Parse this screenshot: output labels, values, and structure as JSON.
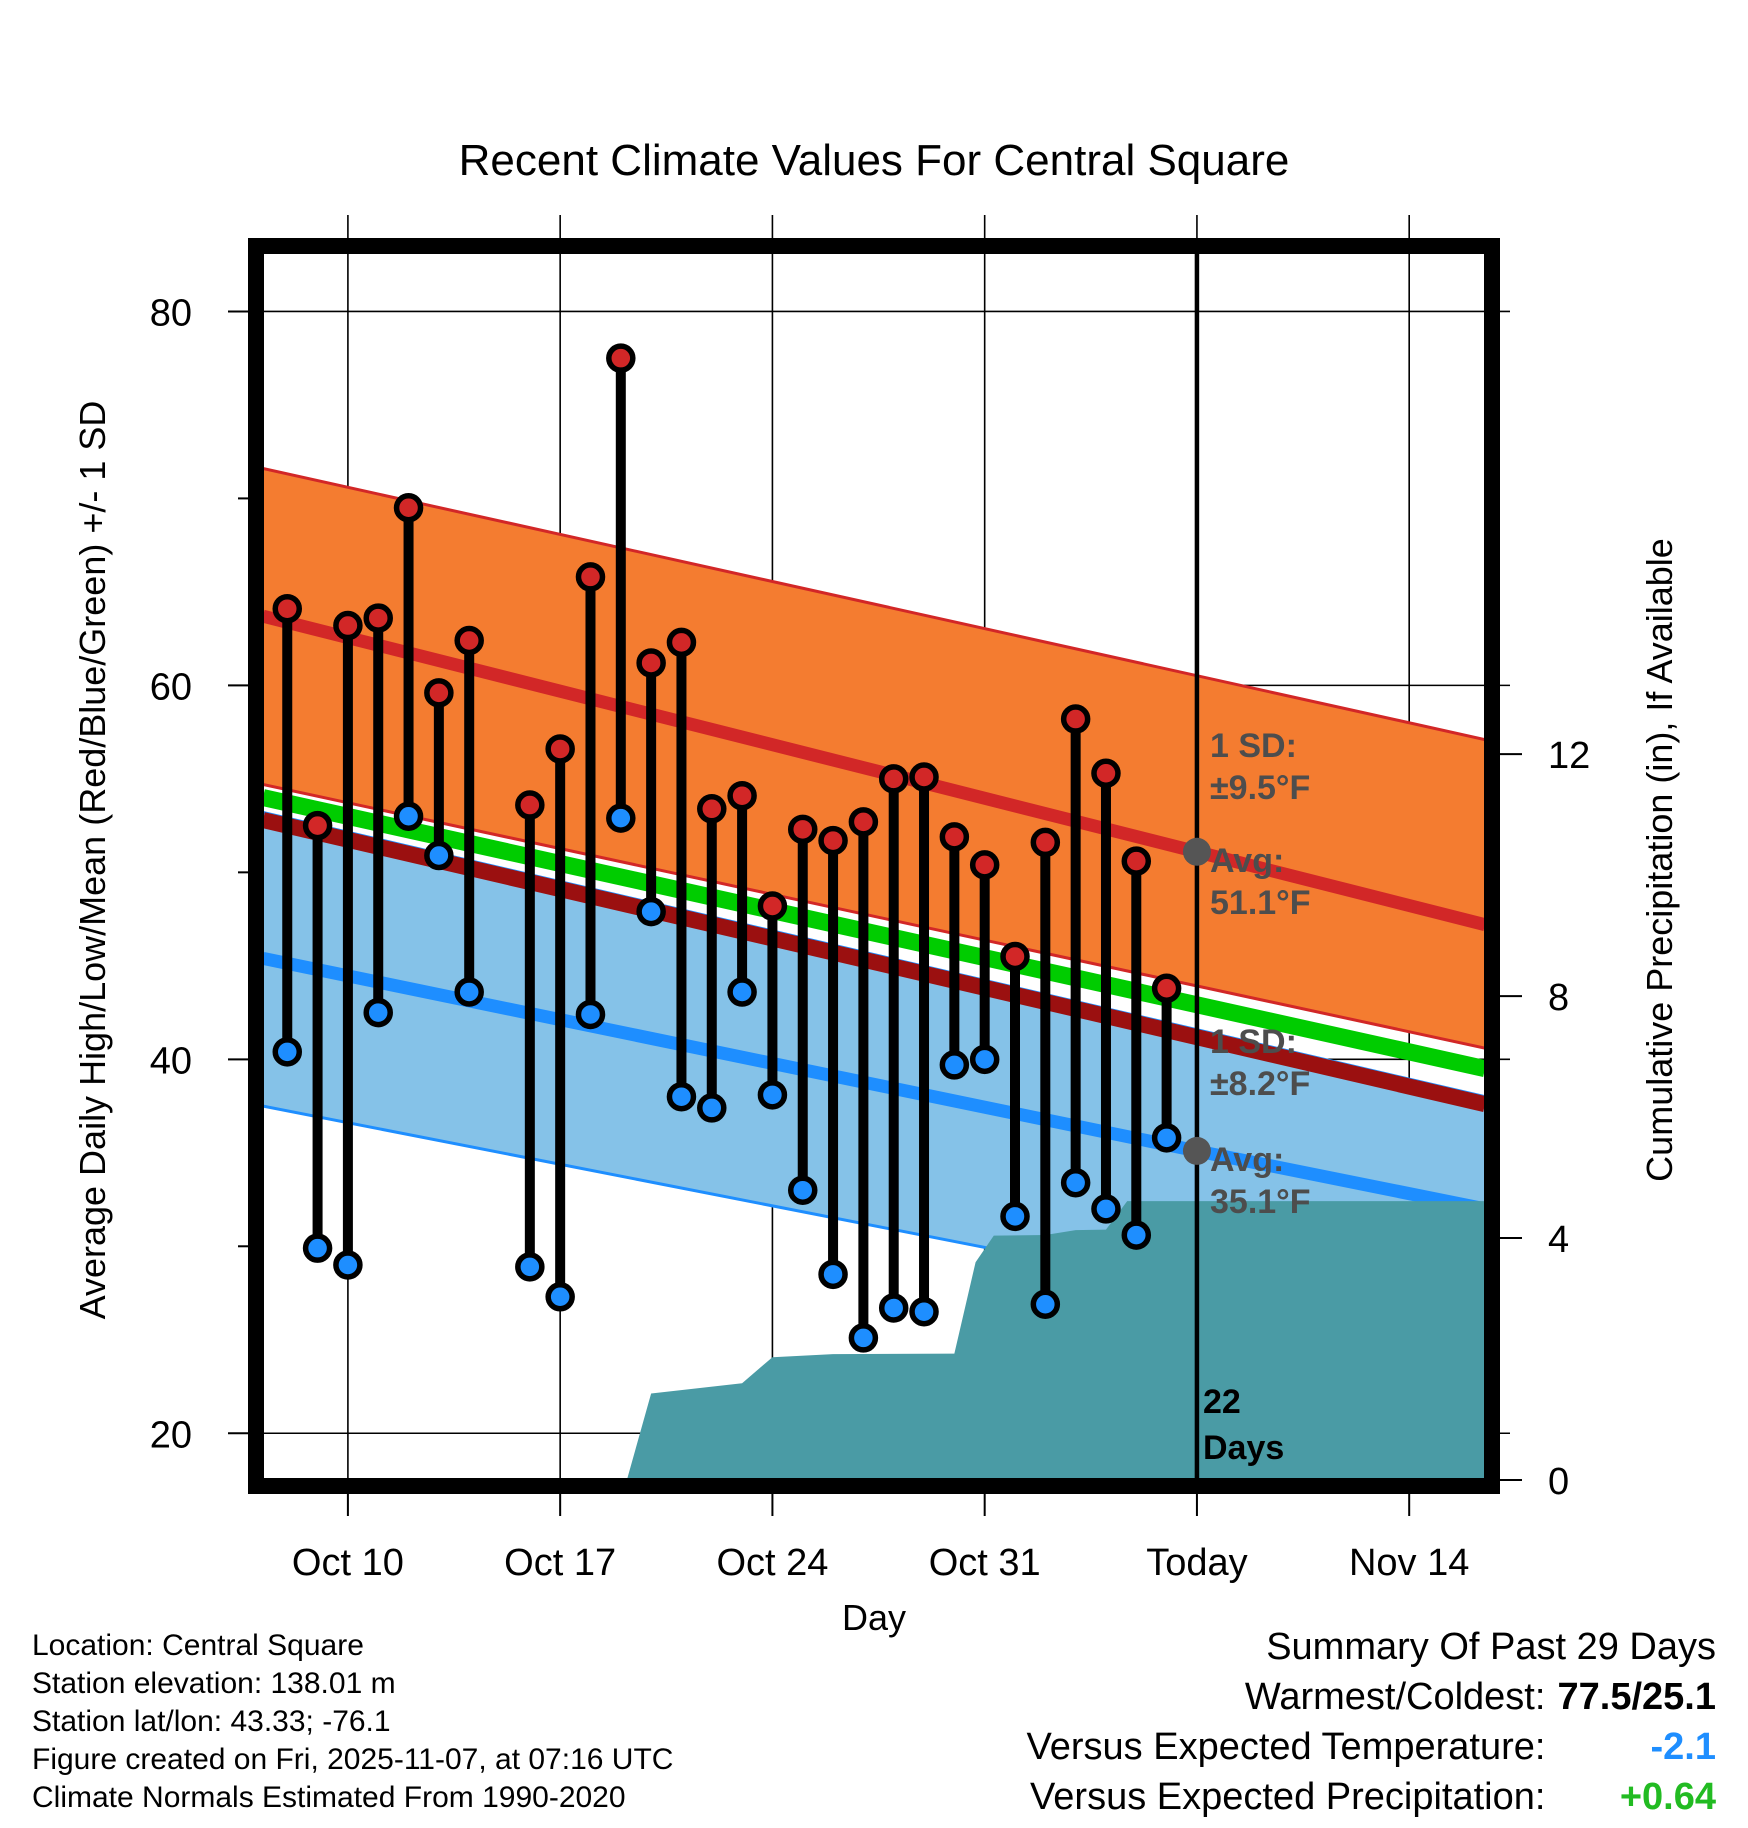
{
  "chart_data": {
    "type": "line",
    "title": "Recent Climate Values For Central Square",
    "xlabel": "Day",
    "ylabel_left": "Average Daily High/Low/Mean (Red/Blue/Green) +/- 1 SD",
    "ylabel_right": "Cumulative Precipitation (in), If Available",
    "ylim_left": [
      17.5,
      83.5
    ],
    "ylim_right": [
      0,
      20.4
    ],
    "xlim_days": [
      -30.8,
      9.5
    ],
    "x_ticks": [
      {
        "day": -28,
        "label": "Oct 10"
      },
      {
        "day": -21,
        "label": "Oct 17"
      },
      {
        "day": -14,
        "label": "Oct 24"
      },
      {
        "day": -7,
        "label": "Oct 31"
      },
      {
        "day": 0,
        "label": "Today"
      },
      {
        "day": 7,
        "label": "Nov 14"
      }
    ],
    "y_ticks_left": [
      20,
      40,
      60,
      80
    ],
    "y_minor_left": [
      30,
      50,
      70
    ],
    "y_ticks_right": [
      0,
      4,
      8,
      12
    ],
    "grid": true,
    "normals": {
      "high_upper": [
        [
          -30.8,
          71.6
        ],
        [
          9.5,
          57.1
        ]
      ],
      "high_mean": [
        [
          -30.8,
          63.7
        ],
        [
          0,
          51.1
        ],
        [
          9.5,
          47.2
        ]
      ],
      "high_lower": [
        [
          -30.8,
          54.7
        ],
        [
          9.5,
          40.6
        ]
      ],
      "mean": [
        [
          -30.8,
          54.0
        ],
        [
          9.5,
          39.5
        ]
      ],
      "low_upper": [
        [
          -30.8,
          53.2
        ],
        [
          9.5,
          38.0
        ]
      ],
      "low_mean": [
        [
          -30.8,
          45.4
        ],
        [
          0,
          35.1
        ],
        [
          9.5,
          32.0
        ]
      ],
      "low_lower": [
        [
          -30.8,
          37.5
        ],
        [
          9.5,
          24.7
        ]
      ],
      "high_colors": {
        "band": "#f47c30",
        "line": "#d22727"
      },
      "low_colors": {
        "band": "#85c2e8",
        "line": "#1e8eff"
      },
      "mean_color": "#00cc00",
      "above_high_mean_color": "#9b1010",
      "precip_color": "#4a9ba5"
    },
    "observations": {
      "days": [
        -30,
        -29,
        -28,
        -27,
        -26,
        -25,
        -24,
        -22,
        -21,
        -20,
        -19,
        -18,
        -17,
        -16,
        -15,
        -14,
        -13,
        -12,
        -11,
        -10,
        -9,
        -8,
        -7,
        -6,
        -5,
        -4,
        -3,
        -2,
        -1
      ],
      "highs": [
        64.1,
        52.5,
        63.2,
        63.6,
        69.5,
        59.6,
        62.4,
        53.6,
        56.6,
        65.8,
        77.5,
        61.2,
        62.3,
        53.4,
        54.1,
        48.2,
        52.3,
        51.7,
        52.7,
        55.0,
        55.1,
        51.9,
        50.4,
        45.5,
        51.6,
        58.2,
        55.3,
        50.6,
        43.8
      ],
      "lows": [
        40.4,
        29.9,
        29.0,
        42.5,
        53.0,
        50.9,
        43.6,
        28.9,
        27.3,
        42.4,
        52.9,
        47.9,
        38.0,
        37.4,
        43.6,
        38.1,
        33.0,
        28.5,
        25.1,
        26.7,
        26.5,
        39.7,
        40.0,
        31.6,
        26.9,
        33.4,
        32.0,
        30.6,
        35.8
      ],
      "high_color": "#d22727",
      "low_color": "#1e8eff"
    },
    "precip_cumulative": [
      [
        -18.8,
        0
      ],
      [
        -18,
        1.43
      ],
      [
        -15,
        1.6
      ],
      [
        -14,
        2.03
      ],
      [
        -12,
        2.08
      ],
      [
        -8,
        2.09
      ],
      [
        -7.3,
        3.6
      ],
      [
        -6.7,
        4.04
      ],
      [
        -5,
        4.05
      ],
      [
        -4,
        4.13
      ],
      [
        -3,
        4.14
      ],
      [
        -2.3,
        4.61
      ],
      [
        0,
        4.61
      ],
      [
        9.5,
        4.61
      ]
    ],
    "today_marker": {
      "day": 0,
      "label_line1": "22",
      "label_line2": "Days"
    },
    "annotations": {
      "high_sd_line1": "1 SD:",
      "high_sd_line2": "±9.5°F",
      "high_avg_line1": "Avg:",
      "high_avg_line2": "51.1°F",
      "low_sd_line1": "1 SD:",
      "low_sd_line2": "±8.2°F",
      "low_avg_line1": "Avg:",
      "low_avg_line2": "35.1°F"
    }
  },
  "info": {
    "location": "Location: Central Square",
    "elevation": "Station elevation: 138.01 m",
    "latlon": "Station lat/lon: 43.33; -76.1",
    "created": "Figure created on Fri, 2025-11-07, at 07:16 UTC",
    "normals": "Climate Normals Estimated From 1990-2020"
  },
  "summary": {
    "title": "Summary Of Past 29 Days",
    "warm_cold_label": "Warmest/Coldest:",
    "warm_cold_value": "77.5/25.1",
    "temp_label": "Versus Expected Temperature:",
    "temp_value": "-2.1",
    "precip_label": "Versus Expected Precipitation:",
    "precip_value": "+0.64",
    "temp_color": "#1e8eff",
    "precip_color": "#22bb22"
  }
}
